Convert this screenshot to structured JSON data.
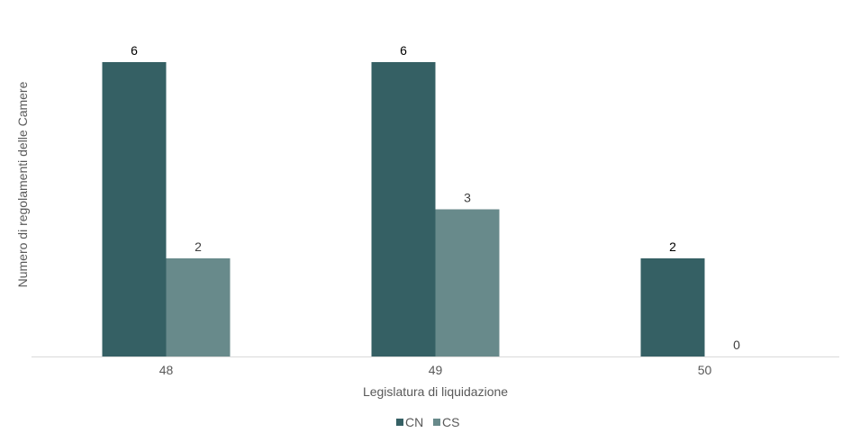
{
  "chart_data": {
    "type": "bar",
    "categories": [
      "48",
      "49",
      "50"
    ],
    "series": [
      {
        "name": "CN",
        "values": [
          6,
          6,
          2
        ],
        "color": "#356064"
      },
      {
        "name": "CS",
        "values": [
          2,
          3,
          0
        ],
        "color": "#688a8b"
      }
    ],
    "xlabel": "Legislatura di liquidazione",
    "ylabel": "Numero di regolamenti delle Camere",
    "ylim": [
      0,
      6
    ],
    "grid": false,
    "legend": "bottom-center",
    "data_label_colors": [
      "#000000",
      "#404040"
    ],
    "axis_color": "#d9d9d9"
  }
}
